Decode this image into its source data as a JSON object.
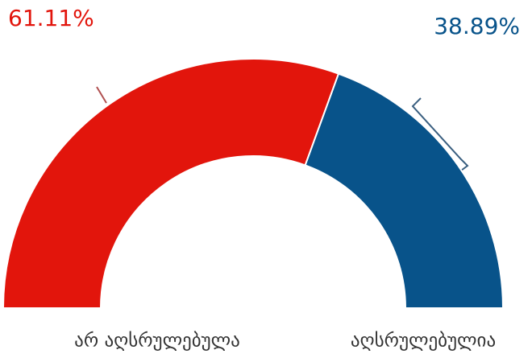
{
  "chart_data": {
    "type": "semi-donut",
    "categories": [
      "არ აღსრულებულა",
      "აღსრულებულია"
    ],
    "values": [
      61.11,
      38.89
    ],
    "value_labels": [
      "61.11%",
      "38.89%"
    ],
    "colors": [
      "#e2150c",
      "#08538a"
    ]
  }
}
